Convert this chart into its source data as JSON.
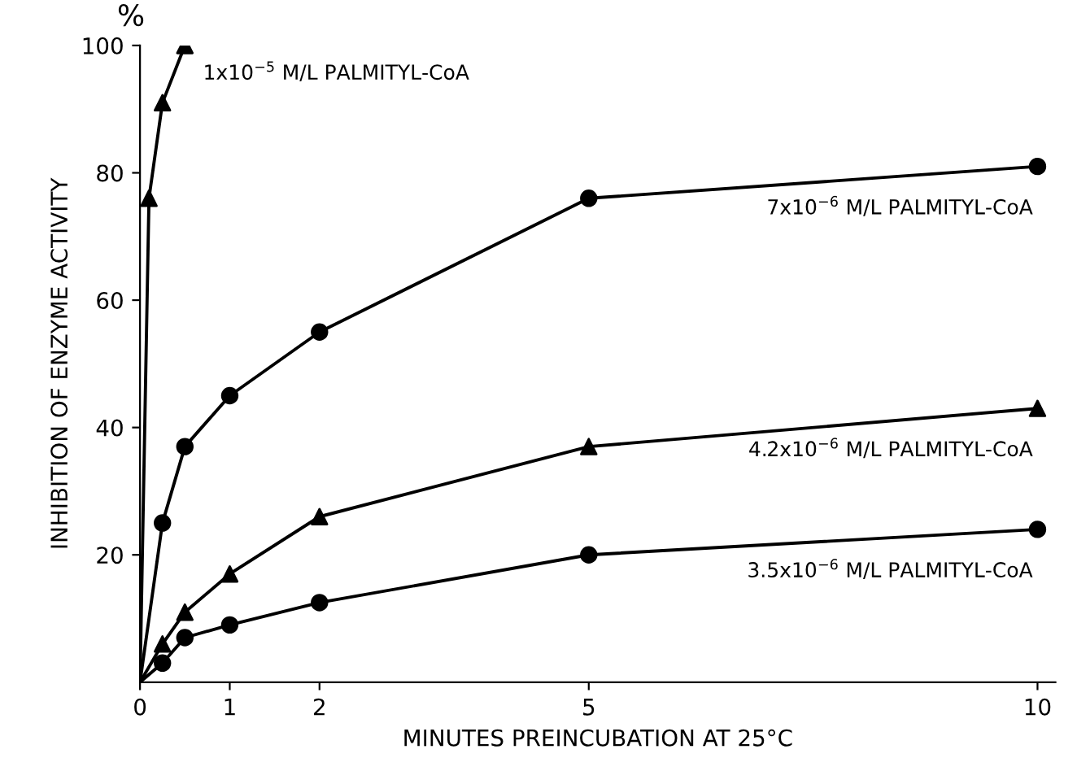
{
  "chart_data": {
    "type": "line",
    "xlabel": "MINUTES PREINCUBATION AT 25°C",
    "ylabel": "INHIBITION OF ENZYME ACTIVITY",
    "annotations": [
      "%"
    ],
    "xlim": [
      0,
      10.2
    ],
    "ylim": [
      0,
      100
    ],
    "xticks": [
      0,
      1,
      2,
      5,
      10
    ],
    "yticks": [
      20,
      40,
      60,
      80,
      100
    ],
    "grid": false,
    "legend": false,
    "series": [
      {
        "name": "1x10$^{−5}$ M/L PALMITYL-CoA",
        "color": "#000000",
        "marker": "triangle",
        "x": [
          0,
          0.1,
          0.25,
          0.5
        ],
        "values": [
          0,
          76,
          91,
          100
        ]
      },
      {
        "name": "7x10$^{−6}$ M/L PALMITYL-CoA",
        "color": "#000000",
        "marker": "circle",
        "x": [
          0,
          0.25,
          0.5,
          1,
          2,
          5,
          10
        ],
        "values": [
          0,
          25,
          37,
          45,
          55,
          76,
          81
        ]
      },
      {
        "name": "4.2x10$^{−6}$ M/L PALMITYL-CoA",
        "color": "#000000",
        "marker": "triangle",
        "x": [
          0,
          0.25,
          0.5,
          1,
          2,
          5,
          10
        ],
        "values": [
          0,
          6,
          11,
          17,
          26,
          37,
          43
        ]
      },
      {
        "name": "3.5x10$^{−6}$ M/L PALMITYL-CoA",
        "color": "#000000",
        "marker": "circle",
        "x": [
          0,
          0.25,
          0.5,
          1,
          2,
          5,
          10
        ],
        "values": [
          0,
          3,
          7,
          9,
          12.5,
          20,
          24
        ]
      }
    ]
  }
}
